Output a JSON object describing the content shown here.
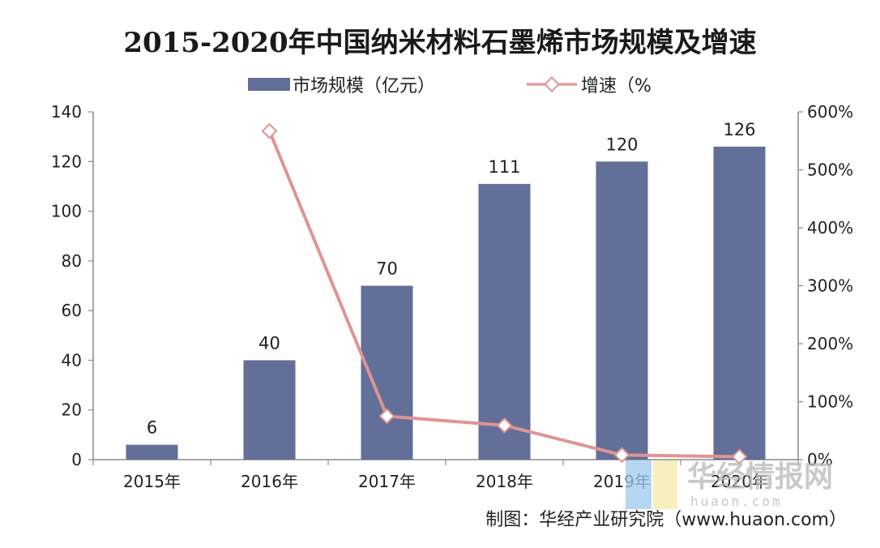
{
  "chart_data": {
    "type": "bar",
    "title": "2015-2020年中国纳米材料石墨烯市场规模及增速",
    "categories": [
      "2015年",
      "2016年",
      "2017年",
      "2018年",
      "2019年",
      "2020年"
    ],
    "series": [
      {
        "name": "市场规模（亿元）",
        "type": "bar",
        "axis": "left",
        "values": [
          6,
          40,
          70,
          111,
          120,
          126
        ],
        "labels": [
          "6",
          "40",
          "70",
          "111",
          "120",
          "126"
        ],
        "color": "#626f98"
      },
      {
        "name": "增速（%",
        "type": "line",
        "axis": "right",
        "values": [
          null,
          567,
          75,
          59,
          8,
          5
        ],
        "color": "#df9493"
      }
    ],
    "y_left": {
      "min": 0,
      "max": 140,
      "ticks": [
        "0",
        "20",
        "40",
        "60",
        "80",
        "100",
        "120",
        "140"
      ]
    },
    "y_right": {
      "min": 0,
      "max": 600,
      "ticks": [
        "0%",
        "100%",
        "200%",
        "300%",
        "400%",
        "500%",
        "600%"
      ]
    },
    "grid": false,
    "legend": "top-center"
  },
  "source": "制图：华经产业研究院（www.huaon.com）",
  "watermark": {
    "text": "华经情报网",
    "sub": "huaon.com"
  }
}
